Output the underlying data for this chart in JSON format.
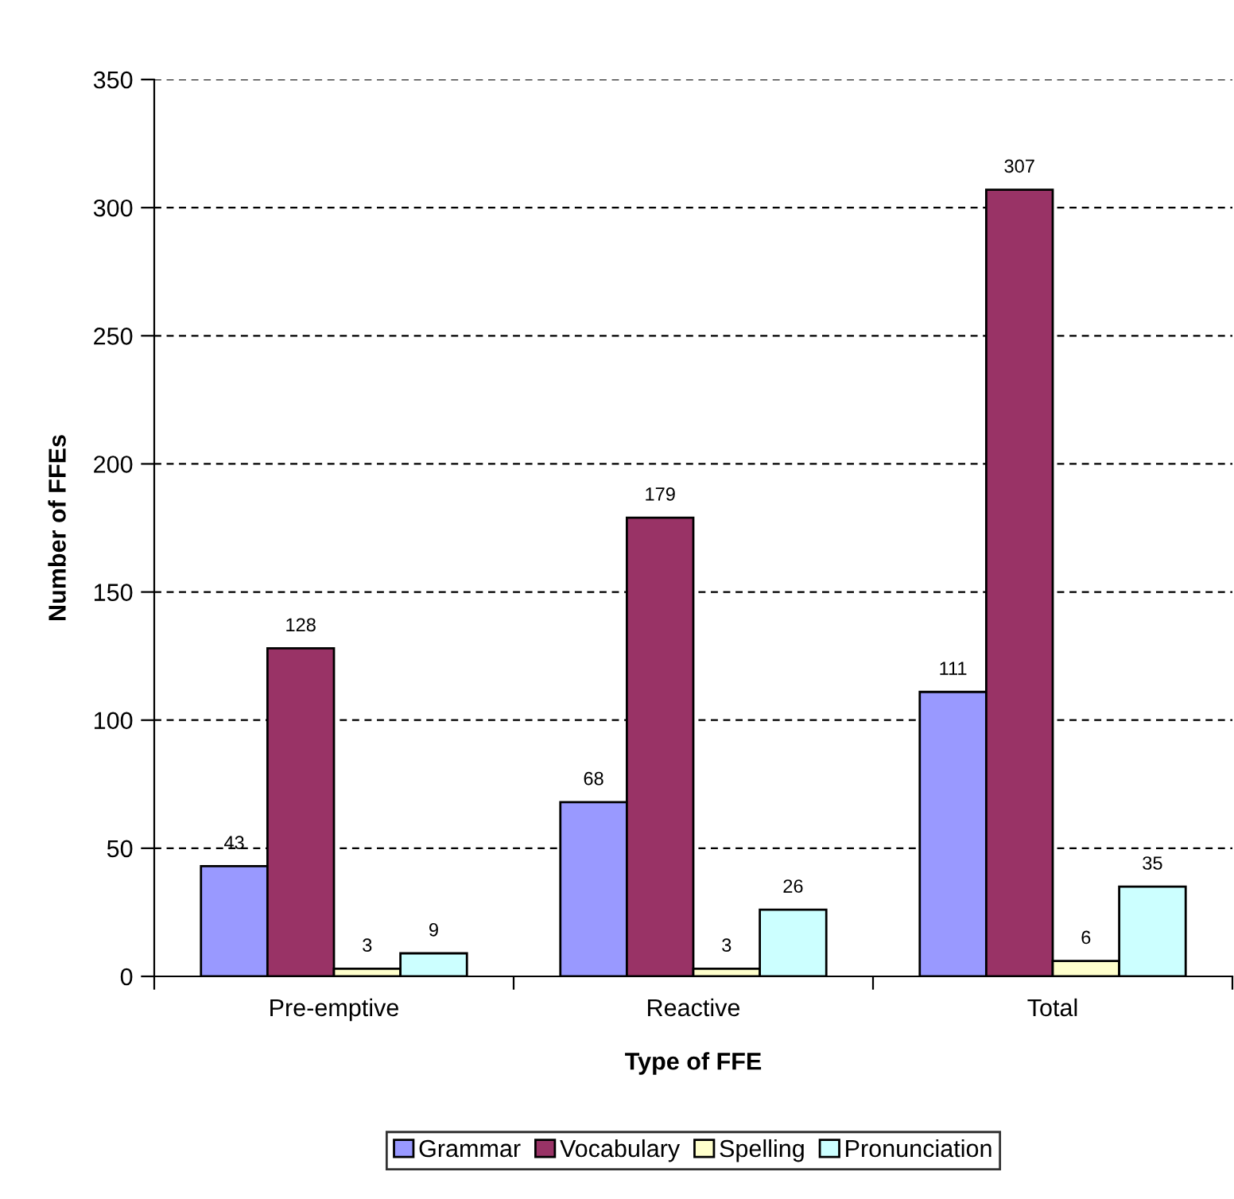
{
  "chart_data": {
    "type": "bar",
    "xlabel": "Type of FFE",
    "ylabel": "Number of FFEs",
    "categories": [
      "Pre-emptive",
      "Reactive",
      "Total"
    ],
    "series": [
      {
        "name": "Grammar",
        "color": "#9999ff",
        "values": [
          43,
          68,
          111
        ]
      },
      {
        "name": "Vocabulary",
        "color": "#993366",
        "values": [
          128,
          179,
          307
        ]
      },
      {
        "name": "Spelling",
        "color": "#ffffcc",
        "values": [
          3,
          3,
          6
        ]
      },
      {
        "name": "Pronunciation",
        "color": "#ccffff",
        "values": [
          9,
          26,
          35
        ]
      }
    ],
    "ylim": [
      0,
      350
    ],
    "yticks": [
      0,
      50,
      100,
      150,
      200,
      250,
      300,
      350
    ],
    "grid": "y",
    "legend": "bottom",
    "data_labels": true
  }
}
